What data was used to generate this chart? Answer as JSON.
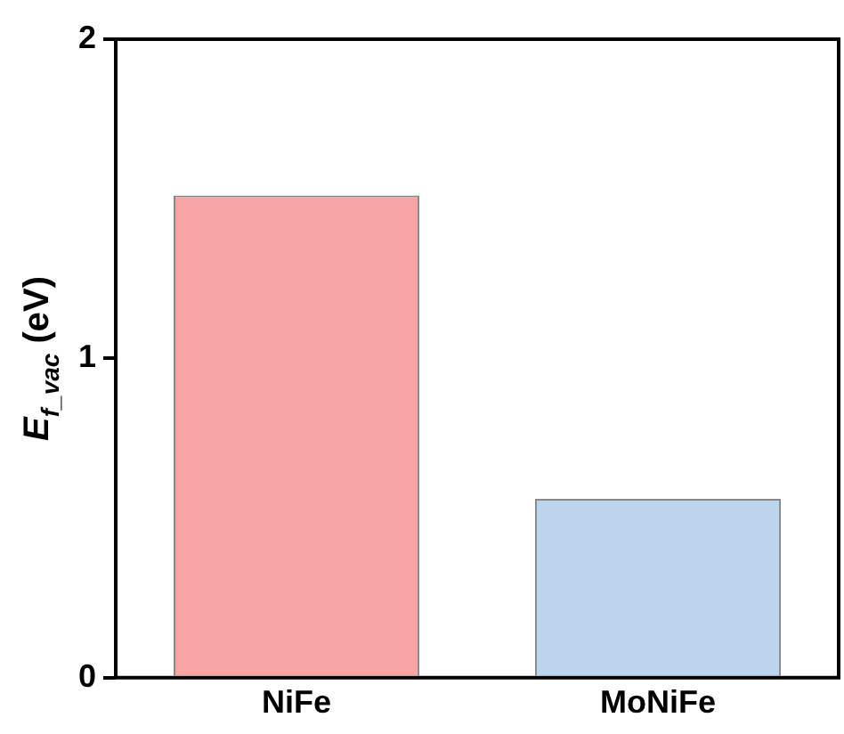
{
  "chart_data": {
    "type": "bar",
    "ylabel": "E$_{f_vac}$ (eV)",
    "categories": [
      "NiFe",
      "MoNiFe"
    ],
    "values": [
      1.51,
      0.56
    ],
    "colors": [
      "#f6a4a4",
      "#bdd4ed"
    ],
    "ylim": [
      0,
      2
    ],
    "yticks": [
      0,
      1,
      2
    ],
    "grid": false,
    "legend": false
  }
}
